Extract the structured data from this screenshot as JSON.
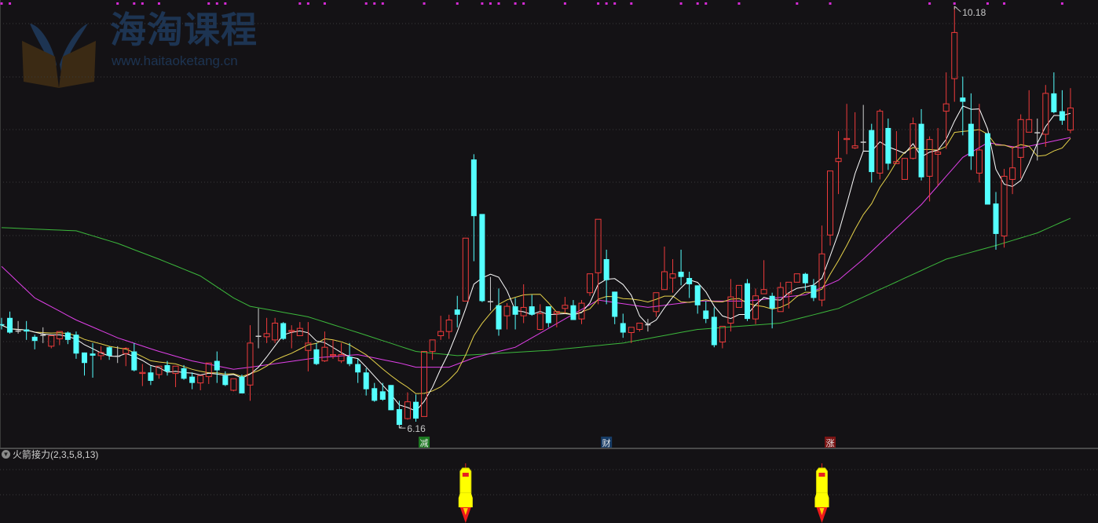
{
  "colors": {
    "background": "#141215",
    "up": "#ee3b3b",
    "down": "#54ffff",
    "doji": "#cccccc",
    "ma5": "#ffffff",
    "ma10": "#e6d24a",
    "ma20": "#e040e8",
    "ma60": "#3cb83c",
    "signal_dot": "#d62ad6",
    "grid": "#3a3a3a"
  },
  "watermark": {
    "title": "海淘课程",
    "url": "www.haitaoketang.cn"
  },
  "indicator": {
    "title": "火箭接力(2,3,5,8,13)",
    "rocket_indices": [
      56,
      99
    ]
  },
  "chart_data": {
    "type": "candlestick",
    "grid": true,
    "candle_fields": [
      "open",
      "high",
      "low",
      "close"
    ],
    "candles": [
      [
        7.15,
        7.21,
        7.1,
        7.14
      ],
      [
        7.21,
        7.27,
        7.06,
        7.07
      ],
      [
        7.09,
        7.18,
        7.06,
        7.09
      ],
      [
        7.1,
        7.18,
        7.0,
        7.08
      ],
      [
        7.03,
        7.05,
        6.91,
        6.99
      ],
      [
        7.05,
        7.12,
        6.97,
        7.05
      ],
      [
        6.94,
        7.04,
        6.92,
        7.04
      ],
      [
        7.01,
        7.08,
        6.95,
        7.08
      ],
      [
        7.07,
        7.08,
        6.96,
        7.0
      ],
      [
        7.05,
        7.08,
        6.82,
        6.87
      ],
      [
        6.88,
        6.88,
        6.66,
        6.78
      ],
      [
        6.87,
        6.97,
        6.64,
        6.85
      ],
      [
        6.85,
        6.94,
        6.81,
        6.88
      ],
      [
        6.93,
        6.94,
        6.81,
        6.85
      ],
      [
        6.85,
        6.94,
        6.78,
        6.85
      ],
      [
        6.87,
        6.93,
        6.75,
        6.92
      ],
      [
        6.89,
        6.97,
        6.7,
        6.71
      ],
      [
        6.68,
        6.77,
        6.56,
        6.69
      ],
      [
        6.69,
        6.75,
        6.57,
        6.61
      ],
      [
        6.67,
        6.75,
        6.63,
        6.75
      ],
      [
        6.76,
        6.8,
        6.66,
        6.7
      ],
      [
        6.68,
        6.75,
        6.55,
        6.75
      ],
      [
        6.73,
        6.76,
        6.62,
        6.63
      ],
      [
        6.65,
        6.69,
        6.53,
        6.59
      ],
      [
        6.59,
        6.66,
        6.52,
        6.66
      ],
      [
        6.65,
        6.78,
        6.58,
        6.78
      ],
      [
        6.8,
        6.89,
        6.59,
        6.71
      ],
      [
        6.66,
        6.7,
        6.56,
        6.57
      ],
      [
        6.52,
        6.63,
        6.51,
        6.63
      ],
      [
        6.65,
        6.67,
        6.49,
        6.49
      ],
      [
        6.57,
        7.14,
        6.42,
        6.97
      ],
      [
        7.04,
        7.3,
        6.92,
        7.04
      ],
      [
        7.03,
        7.21,
        6.97,
        7.06
      ],
      [
        7.0,
        7.21,
        6.97,
        7.16
      ],
      [
        7.16,
        7.17,
        7.0,
        7.01
      ],
      [
        7.08,
        7.14,
        6.92,
        7.09
      ],
      [
        7.04,
        7.17,
        7.04,
        7.11
      ],
      [
        6.9,
        7.17,
        6.7,
        6.97
      ],
      [
        6.91,
        6.97,
        6.76,
        6.77
      ],
      [
        6.8,
        7.08,
        6.79,
        6.93
      ],
      [
        6.85,
        7.0,
        6.82,
        6.86
      ],
      [
        6.8,
        6.97,
        6.78,
        6.86
      ],
      [
        6.84,
        6.97,
        6.75,
        6.77
      ],
      [
        6.77,
        6.82,
        6.59,
        6.69
      ],
      [
        6.69,
        6.73,
        6.47,
        6.53
      ],
      [
        6.54,
        6.59,
        6.41,
        6.42
      ],
      [
        6.51,
        6.59,
        6.42,
        6.43
      ],
      [
        6.57,
        6.57,
        6.33,
        6.33
      ],
      [
        6.34,
        6.42,
        6.16,
        6.19
      ],
      [
        6.25,
        6.5,
        6.24,
        6.41
      ],
      [
        6.41,
        6.48,
        6.22,
        6.25
      ],
      [
        6.27,
        6.89,
        6.27,
        6.89
      ],
      [
        6.89,
        7.0,
        6.81,
        7.0
      ],
      [
        7.04,
        7.23,
        7.0,
        7.08
      ],
      [
        7.08,
        7.24,
        7.01,
        7.19
      ],
      [
        7.29,
        7.42,
        7.12,
        7.24
      ],
      [
        7.37,
        7.97,
        7.37,
        7.97
      ],
      [
        8.72,
        8.77,
        7.75,
        8.18
      ],
      [
        8.2,
        8.2,
        7.36,
        7.37
      ],
      [
        7.37,
        7.6,
        7.28,
        7.37
      ],
      [
        7.33,
        7.49,
        7.04,
        7.1
      ],
      [
        7.23,
        7.35,
        7.1,
        7.32
      ],
      [
        7.32,
        7.4,
        7.1,
        7.24
      ],
      [
        7.23,
        7.53,
        7.16,
        7.31
      ],
      [
        7.32,
        7.43,
        7.23,
        7.24
      ],
      [
        7.1,
        7.34,
        7.09,
        7.25
      ],
      [
        7.32,
        7.32,
        7.12,
        7.16
      ],
      [
        7.25,
        7.27,
        7.12,
        7.27
      ],
      [
        7.3,
        7.41,
        7.25,
        7.33
      ],
      [
        7.33,
        7.38,
        7.19,
        7.19
      ],
      [
        7.2,
        7.38,
        7.15,
        7.35
      ],
      [
        7.45,
        7.63,
        7.42,
        7.63
      ],
      [
        7.64,
        8.15,
        7.34,
        8.15
      ],
      [
        7.77,
        7.86,
        7.34,
        7.57
      ],
      [
        7.46,
        7.46,
        7.15,
        7.22
      ],
      [
        7.16,
        7.25,
        7.02,
        7.07
      ],
      [
        7.07,
        7.12,
        6.97,
        7.12
      ],
      [
        7.1,
        7.16,
        7.08,
        7.16
      ],
      [
        7.15,
        7.2,
        7.08,
        7.15
      ],
      [
        7.27,
        7.45,
        7.22,
        7.45
      ],
      [
        7.48,
        7.89,
        7.48,
        7.65
      ],
      [
        7.59,
        7.77,
        7.45,
        7.63
      ],
      [
        7.65,
        7.86,
        7.52,
        7.6
      ],
      [
        7.59,
        7.65,
        7.4,
        7.53
      ],
      [
        7.52,
        7.52,
        7.25,
        7.33
      ],
      [
        7.28,
        7.37,
        7.16,
        7.2
      ],
      [
        7.22,
        7.31,
        6.93,
        6.95
      ],
      [
        6.98,
        7.13,
        6.92,
        7.13
      ],
      [
        7.16,
        7.58,
        7.08,
        7.41
      ],
      [
        7.31,
        7.52,
        7.31,
        7.52
      ],
      [
        7.54,
        7.58,
        7.18,
        7.2
      ],
      [
        7.2,
        7.49,
        7.15,
        7.42
      ],
      [
        7.44,
        7.76,
        7.44,
        7.48
      ],
      [
        7.42,
        7.45,
        7.11,
        7.3
      ],
      [
        7.27,
        7.55,
        7.27,
        7.5
      ],
      [
        7.44,
        7.55,
        7.3,
        7.55
      ],
      [
        7.55,
        7.63,
        7.55,
        7.63
      ],
      [
        7.63,
        7.64,
        7.47,
        7.54
      ],
      [
        7.52,
        7.58,
        7.37,
        7.4
      ],
      [
        7.38,
        8.09,
        7.32,
        7.82
      ],
      [
        8.0,
        8.61,
        7.9,
        8.61
      ],
      [
        8.7,
        8.99,
        8.39,
        8.73
      ],
      [
        8.91,
        9.25,
        8.77,
        8.92
      ],
      [
        8.83,
        9.17,
        8.82,
        8.85
      ],
      [
        8.89,
        9.24,
        8.8,
        8.89
      ],
      [
        9.0,
        9.06,
        8.5,
        8.6
      ],
      [
        8.59,
        9.2,
        8.53,
        9.18
      ],
      [
        9.02,
        9.11,
        8.62,
        8.68
      ],
      [
        8.68,
        8.99,
        8.68,
        8.7
      ],
      [
        8.53,
        8.73,
        8.53,
        8.73
      ],
      [
        8.73,
        9.12,
        8.72,
        9.06
      ],
      [
        9.06,
        9.2,
        8.52,
        8.55
      ],
      [
        8.56,
        8.94,
        8.32,
        8.91
      ],
      [
        8.77,
        9.02,
        8.47,
        8.79
      ],
      [
        9.18,
        9.55,
        8.82,
        9.25
      ],
      [
        9.49,
        10.18,
        9.27,
        9.93
      ],
      [
        9.31,
        9.51,
        8.95,
        9.27
      ],
      [
        9.06,
        9.35,
        8.62,
        8.75
      ],
      [
        8.59,
        9.25,
        8.5,
        8.81
      ],
      [
        8.97,
        8.97,
        8.29,
        8.29
      ],
      [
        8.3,
        8.41,
        7.86,
        8.01
      ],
      [
        7.99,
        8.63,
        7.88,
        8.56
      ],
      [
        8.53,
        8.84,
        8.39,
        8.64
      ],
      [
        8.74,
        9.15,
        8.54,
        9.1
      ],
      [
        8.98,
        9.38,
        8.98,
        9.1
      ],
      [
        8.98,
        9.11,
        8.71,
        8.98
      ],
      [
        8.96,
        9.43,
        8.84,
        9.35
      ],
      [
        9.35,
        9.55,
        9.16,
        9.17
      ],
      [
        9.18,
        9.38,
        9.05,
        9.09
      ],
      [
        9.0,
        9.4,
        8.97,
        9.21
      ]
    ],
    "ma20_points": [
      [
        0,
        7.7
      ],
      [
        4,
        7.4
      ],
      [
        9,
        7.19
      ],
      [
        14,
        7.02
      ],
      [
        19,
        6.89
      ],
      [
        23,
        6.8
      ],
      [
        28,
        6.72
      ],
      [
        30,
        6.74
      ],
      [
        38,
        6.83
      ],
      [
        43,
        6.86
      ],
      [
        48,
        6.78
      ],
      [
        50,
        6.74
      ],
      [
        54,
        6.74
      ],
      [
        57,
        6.83
      ],
      [
        62,
        6.93
      ],
      [
        66,
        7.11
      ],
      [
        72,
        7.38
      ],
      [
        78,
        7.31
      ],
      [
        84,
        7.37
      ],
      [
        90,
        7.37
      ],
      [
        97,
        7.43
      ],
      [
        101,
        7.57
      ],
      [
        104,
        7.77
      ],
      [
        111,
        8.29
      ],
      [
        116,
        8.74
      ],
      [
        119,
        8.88
      ],
      [
        123,
        8.83
      ],
      [
        129,
        8.93
      ]
    ],
    "ma60_points": [
      [
        0,
        8.07
      ],
      [
        9,
        8.04
      ],
      [
        14,
        7.92
      ],
      [
        19,
        7.77
      ],
      [
        24,
        7.61
      ],
      [
        28,
        7.4
      ],
      [
        30,
        7.32
      ],
      [
        37,
        7.22
      ],
      [
        43,
        7.07
      ],
      [
        50,
        6.89
      ],
      [
        55,
        6.85
      ],
      [
        66,
        6.9
      ],
      [
        75,
        6.97
      ],
      [
        84,
        7.1
      ],
      [
        94,
        7.16
      ],
      [
        101,
        7.3
      ],
      [
        114,
        7.77
      ],
      [
        120,
        7.9
      ],
      [
        125,
        8.02
      ],
      [
        129,
        8.16
      ]
    ],
    "annotations": [
      {
        "index": 115,
        "text": "10.18",
        "at": "high"
      },
      {
        "index": 48,
        "text": "6.16",
        "at": "low"
      }
    ],
    "markers": [
      {
        "index": 51,
        "text": "减",
        "color": "#1d7a22"
      },
      {
        "index": 73,
        "text": "财",
        "color": "#173c66"
      },
      {
        "index": 100,
        "text": "涨",
        "color": "#7a1414"
      }
    ],
    "signal_dot_indices": [
      0,
      1,
      14,
      16,
      17,
      19,
      25,
      26,
      27,
      36,
      37,
      39,
      44,
      45,
      46,
      51,
      55,
      58,
      59,
      60,
      62,
      63,
      68,
      72,
      73,
      74,
      76,
      82,
      84,
      85,
      89,
      96,
      100,
      112,
      115,
      119,
      121,
      128
    ]
  }
}
